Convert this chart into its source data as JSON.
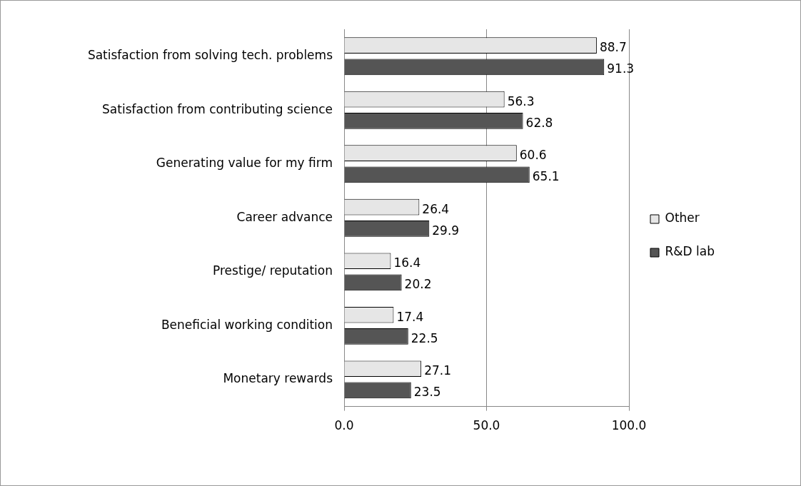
{
  "chart_data": {
    "type": "bar",
    "orientation": "horizontal",
    "categories": [
      "Satisfaction from solving tech. problems",
      "Satisfaction from contributing science",
      "Generating value for my firm",
      "Career advance",
      "Prestige/ reputation",
      "Beneficial working condition",
      "Monetary rewards"
    ],
    "series": [
      {
        "name": "Other",
        "color": "#e6e6e6",
        "values": [
          88.7,
          56.3,
          60.6,
          26.4,
          16.4,
          17.4,
          27.1
        ]
      },
      {
        "name": "R&D lab",
        "color": "#555555",
        "values": [
          91.3,
          62.8,
          65.1,
          29.9,
          20.2,
          22.5,
          23.5
        ]
      }
    ],
    "xlim": [
      0,
      100
    ],
    "xticks": [
      {
        "value": 0,
        "label": "0.0"
      },
      {
        "value": 50,
        "label": "50.0"
      },
      {
        "value": 100,
        "label": "100.0"
      }
    ],
    "grid": "x",
    "legend": "right",
    "data_labels": true
  }
}
